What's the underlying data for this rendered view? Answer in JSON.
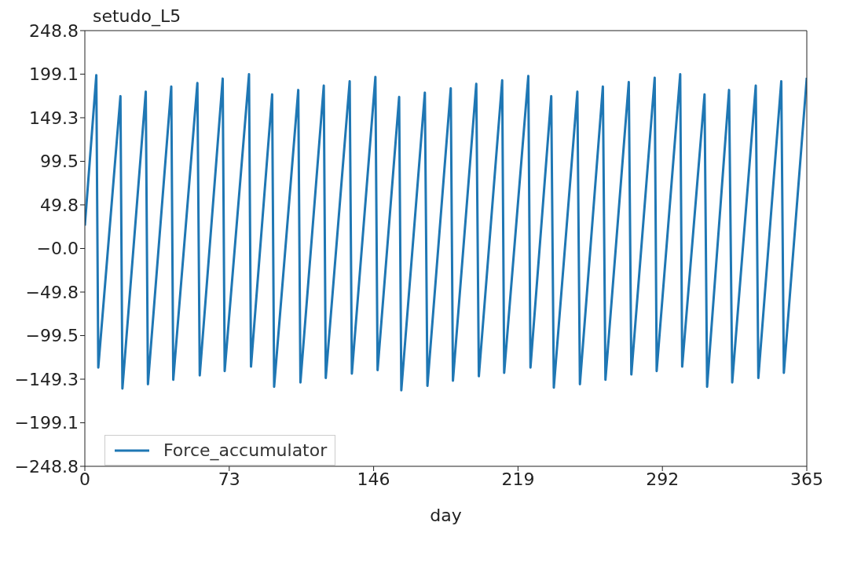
{
  "chart_data": {
    "type": "line",
    "title": "setudo_L5",
    "xlabel": "day",
    "x": [
      0,
      5.8,
      6.8,
      18.0,
      19.0,
      30.8,
      31.9,
      43.7,
      44.7,
      56.9,
      58.1,
      69.7,
      70.7,
      83.0,
      84.0,
      94.7,
      95.7,
      107.9,
      109.0,
      120.8,
      121.8,
      133.9,
      135.0,
      146.9,
      148.0,
      158.9,
      160.0,
      171.9,
      173.2,
      185.0,
      186.1,
      197.9,
      199.2,
      211.0,
      212.0,
      224.2,
      225.3,
      235.8,
      237.1,
      249.0,
      250.3,
      261.9,
      263.2,
      275.0,
      276.3,
      288.1,
      289.1,
      301.0,
      302.0,
      313.3,
      314.6,
      325.7,
      327.3,
      339.2,
      340.5,
      352.1,
      353.4,
      365
    ],
    "series": [
      {
        "name": "Force_accumulator",
        "color": "#1f77b4",
        "values": [
          26,
          198,
          -136,
          174,
          -160,
          179,
          -155,
          185,
          -150,
          189,
          -145,
          194,
          -140,
          199,
          -135,
          176,
          -158,
          181,
          -153,
          186,
          -148,
          191,
          -143,
          196,
          -139,
          173,
          -162,
          178,
          -157,
          183,
          -151,
          188,
          -146,
          192,
          -142,
          197,
          -136,
          174,
          -159,
          179,
          -155,
          185,
          -150,
          190,
          -144,
          195,
          -140,
          199,
          -135,
          176,
          -158,
          181,
          -153,
          186,
          -148,
          191,
          -142,
          195
        ]
      }
    ],
    "xlim": [
      0,
      365
    ],
    "xticks": [
      0,
      73,
      146,
      219,
      292,
      365
    ],
    "ylim": [
      -248.8,
      248.8
    ],
    "yticks": [
      {
        "value": -248.8,
        "label": "−248.8"
      },
      {
        "value": -199.1,
        "label": "−199.1"
      },
      {
        "value": -149.3,
        "label": "−149.3"
      },
      {
        "value": -99.5,
        "label": "−99.5"
      },
      {
        "value": -49.8,
        "label": "−49.8"
      },
      {
        "value": 0,
        "label": "−0.0"
      },
      {
        "value": 49.8,
        "label": "49.8"
      },
      {
        "value": 99.5,
        "label": "99.5"
      },
      {
        "value": 149.3,
        "label": "149.3"
      },
      {
        "value": 199.1,
        "label": "199.1"
      },
      {
        "value": 248.8,
        "label": "248.8"
      }
    ],
    "legend": "bottom left",
    "grid": false,
    "marker": "none",
    "line_style": "solid"
  }
}
